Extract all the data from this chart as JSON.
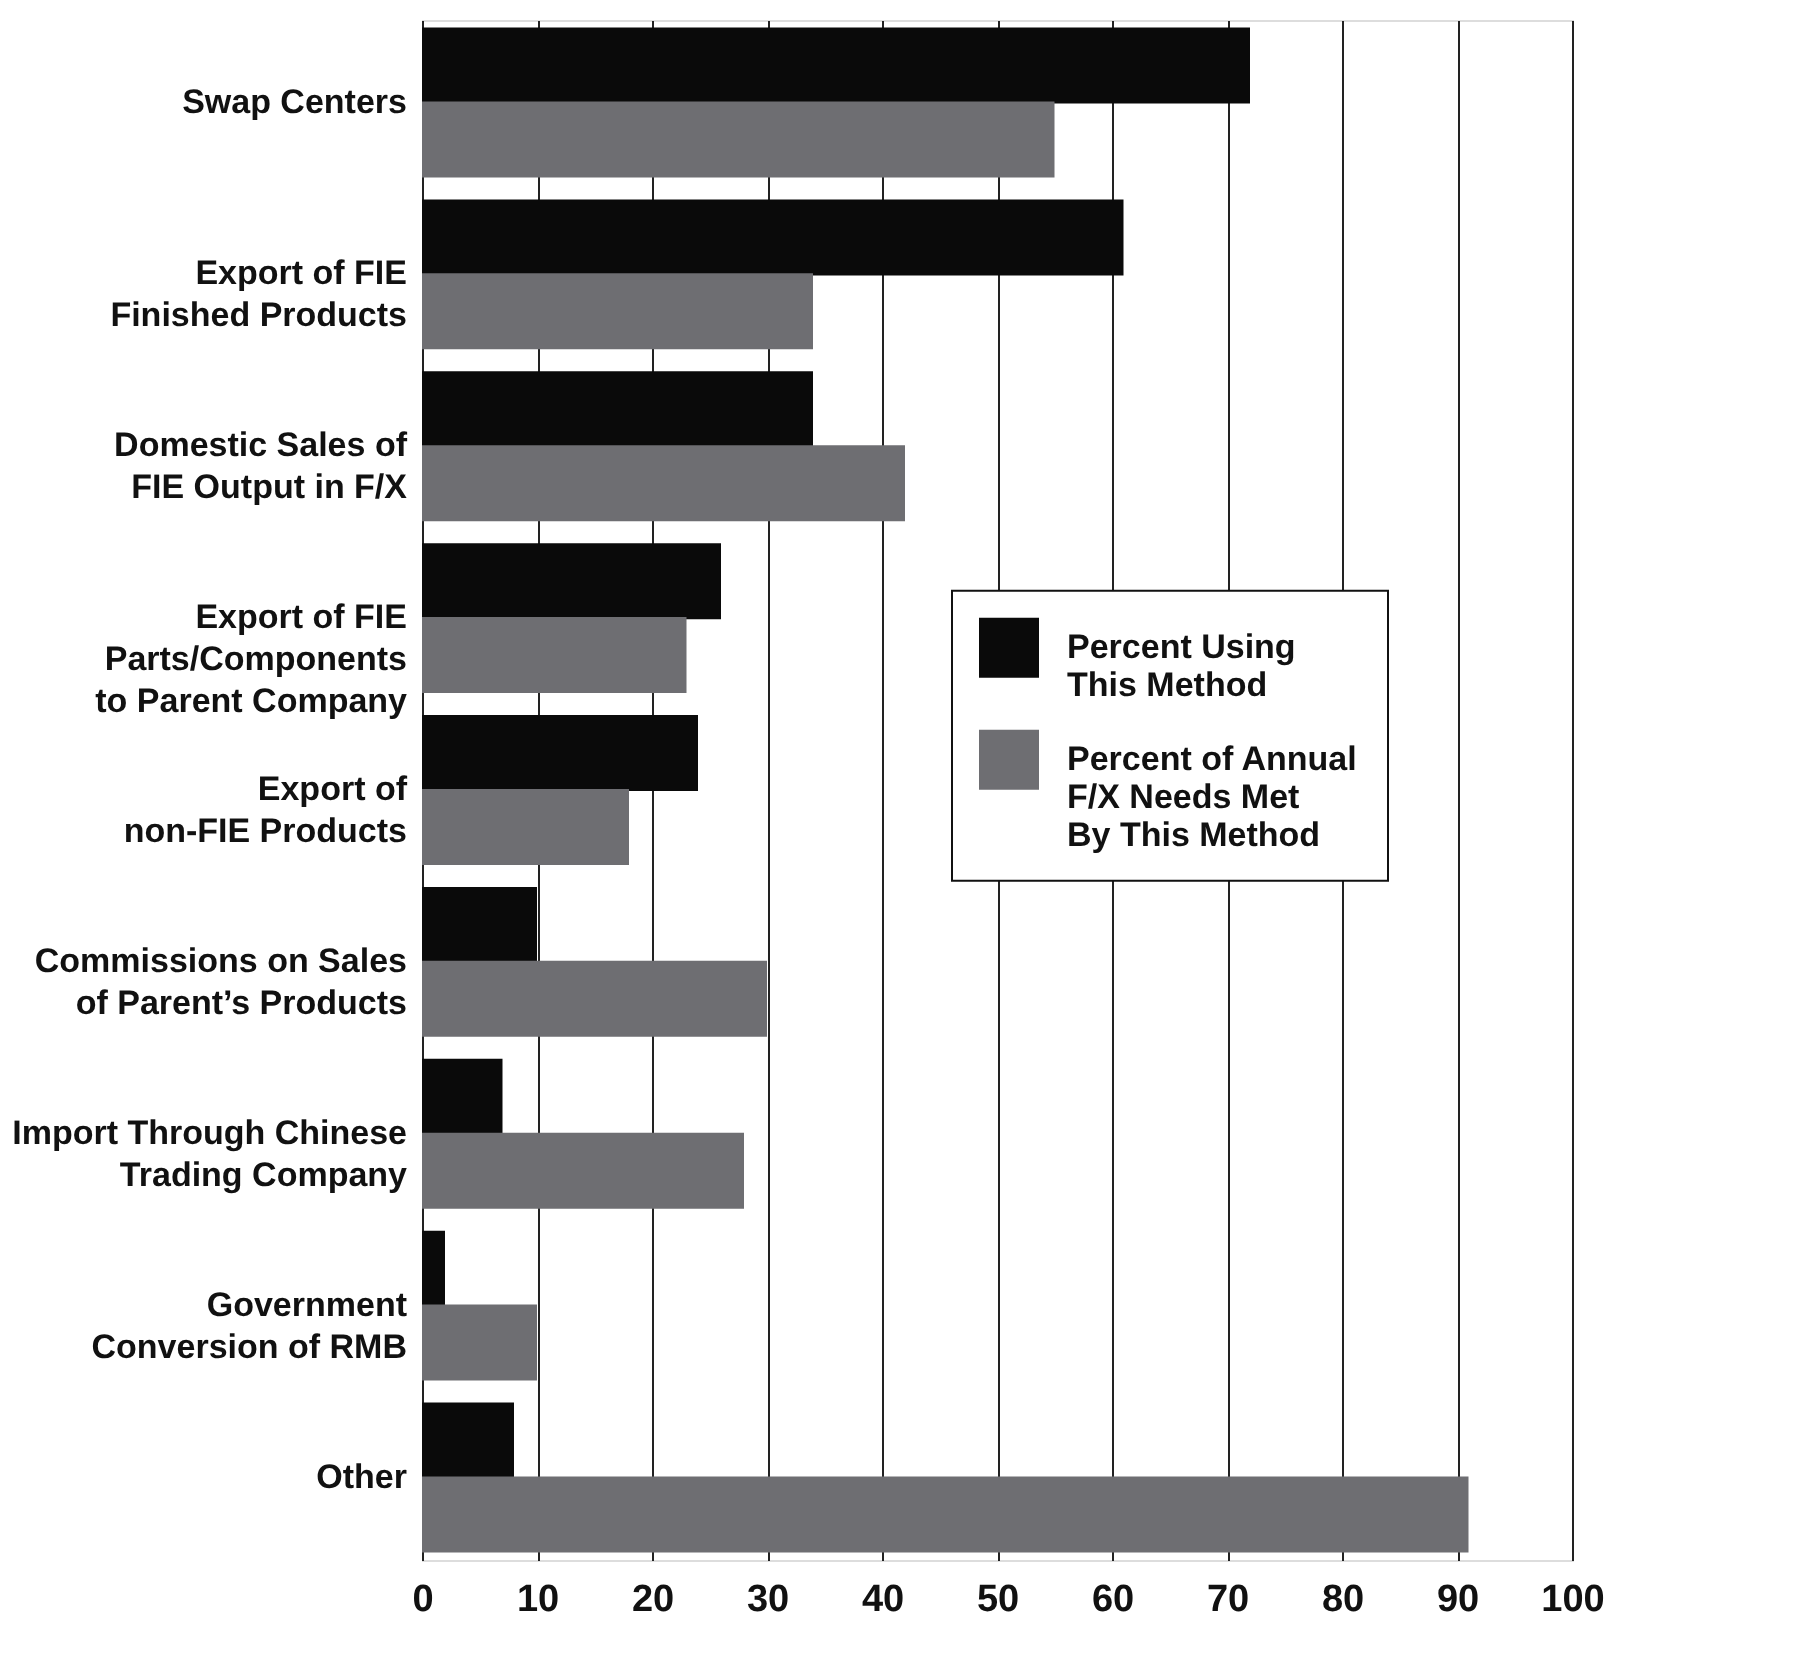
{
  "chart_data": {
    "type": "bar",
    "orientation": "horizontal",
    "categories": [
      "Swap Centers",
      "Export of FIE\nFinished Products",
      "Domestic Sales of\nFIE Output in F/X",
      "Export of FIE\nParts/Components\nto Parent Company",
      "Export of\nnon-FIE Products",
      "Commissions on Sales\nof Parent’s Products",
      "Import Through Chinese\nTrading Company",
      "Government\nConversion of RMB",
      "Other"
    ],
    "series": [
      {
        "name": "Percent Using\nThis Method",
        "color": "#0a0a0a",
        "values": [
          72,
          61,
          34,
          26,
          24,
          10,
          7,
          2,
          8
        ]
      },
      {
        "name": "Percent of Annual\nF/X  Needs Met\nBy This Method",
        "color": "#6e6e72",
        "values": [
          55,
          34,
          42,
          23,
          18,
          30,
          28,
          10,
          91
        ]
      }
    ],
    "xlim": [
      0,
      100
    ],
    "xticks": [
      0,
      10,
      20,
      30,
      40,
      50,
      60,
      70,
      80,
      90,
      100
    ],
    "grid": "x",
    "legend": "right"
  }
}
